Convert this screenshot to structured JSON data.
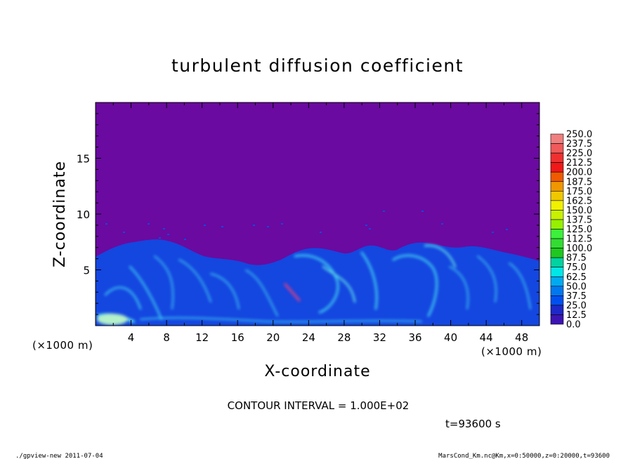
{
  "chart_data": {
    "type": "heatmap",
    "title": "turbulent diffusion coefficient",
    "xlabel": "X-coordinate",
    "ylabel": "Z-coordinate",
    "x_unit": "(×1000 m)",
    "y_unit": "(×1000 m)",
    "xlim": [
      0,
      50
    ],
    "ylim": [
      0,
      20
    ],
    "xticks": [
      4,
      8,
      12,
      16,
      20,
      24,
      28,
      32,
      36,
      40,
      44,
      48
    ],
    "yticks": [
      5,
      10,
      15
    ],
    "colorbar": {
      "levels": [
        "250.0",
        "237.5",
        "225.0",
        "212.5",
        "200.0",
        "187.5",
        "175.0",
        "162.5",
        "150.0",
        "137.5",
        "125.0",
        "112.5",
        "100.0",
        "87.5",
        "75.0",
        "62.5",
        "50.0",
        "37.5",
        "25.0",
        "12.5",
        "0.0"
      ],
      "colors": [
        "#f08080",
        "#f05a5a",
        "#f03030",
        "#f01818",
        "#f05a00",
        "#f09600",
        "#f0c800",
        "#f0f000",
        "#c8f000",
        "#96f000",
        "#3cf03c",
        "#32dc32",
        "#1ec81e",
        "#00d2a0",
        "#00e6e6",
        "#00aaf0",
        "#0078f0",
        "#0050f0",
        "#1e28c8",
        "#3c14b4",
        "#64009c"
      ]
    },
    "field_description_colors": {
      "background": "#6a0aa0",
      "turbulent_layer": "#1446e0",
      "streak": "#3cc8f0"
    },
    "contour_interval_text": "CONTOUR INTERVAL = 1.000E+02",
    "time_text": "t=93600 s"
  },
  "footer": {
    "left": "./gpview-new   2011-07-04",
    "right": "MarsCond_Km.nc@Km,x=0:50000,z=0:20000,t=93600"
  }
}
